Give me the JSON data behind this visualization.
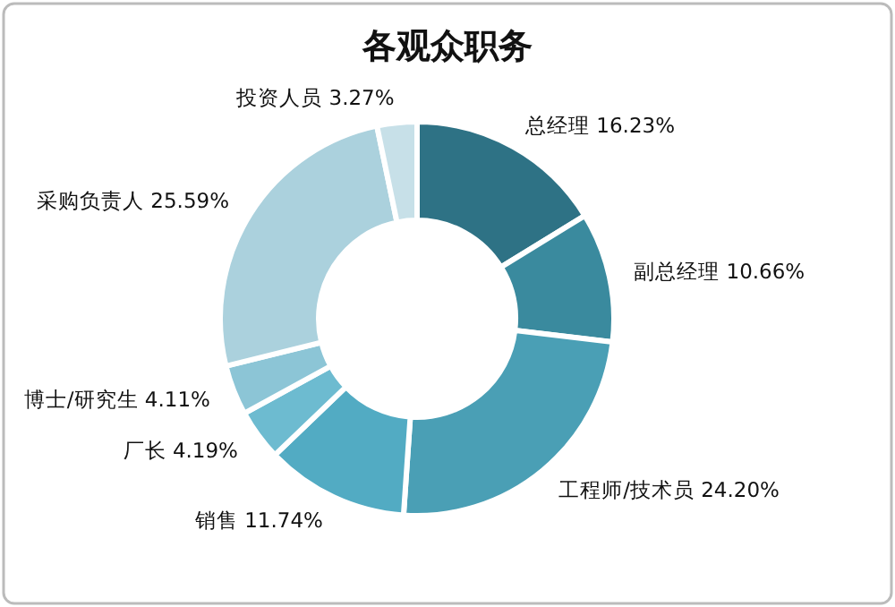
{
  "chart_data": {
    "type": "donut",
    "title": "各观众职务",
    "categories": [
      "总经理",
      "副总经理",
      "工程师/技术员",
      "销售",
      "厂长",
      "博士/研究生",
      "采购负责人",
      "投资人员"
    ],
    "values": [
      16.23,
      10.66,
      24.2,
      11.74,
      4.19,
      4.11,
      25.59,
      3.27
    ],
    "value_labels": [
      "16.23%",
      "10.66%",
      "24.20%",
      "11.74%",
      "4.19%",
      "4.11%",
      "25.59%",
      "3.27%"
    ],
    "colors": [
      "#2e7285",
      "#3a8a9e",
      "#4a9fb5",
      "#52abc3",
      "#6dbbd0",
      "#8cc5d6",
      "#abd1dd",
      "#c7e0e8"
    ]
  }
}
